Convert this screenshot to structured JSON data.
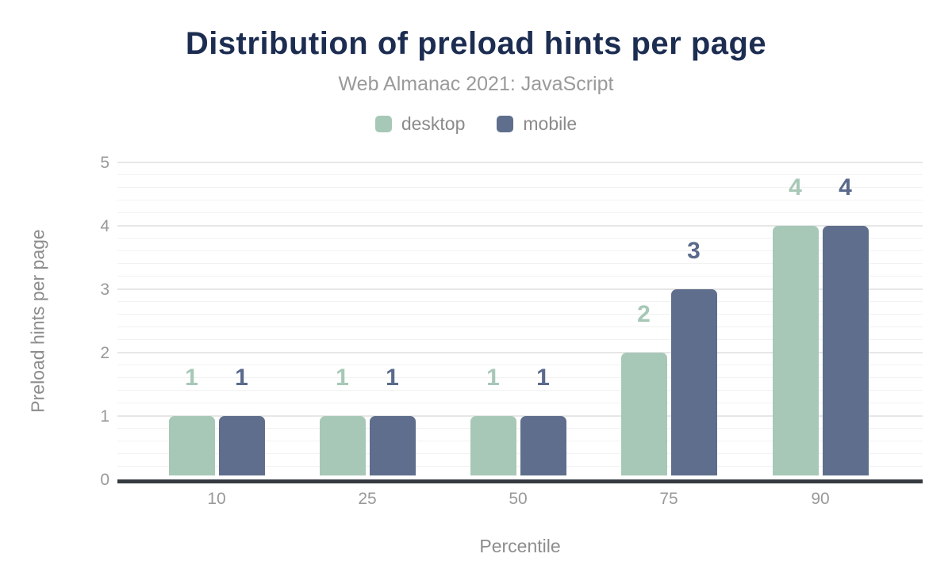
{
  "chart_data": {
    "type": "bar",
    "title": "Distribution of preload hints per page",
    "subtitle": "Web Almanac 2021: JavaScript",
    "xlabel": "Percentile",
    "ylabel": "Preload hints per page",
    "categories": [
      "10",
      "25",
      "50",
      "75",
      "90"
    ],
    "series": [
      {
        "name": "desktop",
        "color": "#a7c8b7",
        "label_color": "#a7c8b7",
        "values": [
          1,
          1,
          1,
          2,
          4
        ]
      },
      {
        "name": "mobile",
        "color": "#5f6e8c",
        "label_color": "#5a6a8c",
        "values": [
          1,
          1,
          1,
          3,
          4
        ]
      }
    ],
    "ylim": [
      0,
      5
    ],
    "yticks": [
      0,
      1,
      2,
      3,
      4,
      5
    ],
    "minor_tick_step": 0.2,
    "grid": "on",
    "legend_position": "top"
  },
  "style_colors": {
    "title": "#1c2d51",
    "subtitle": "#9a9a9a",
    "legend_text": "#8b8b8b",
    "tick_text": "#999999",
    "axis_title_text": "#8d8d8d",
    "major_grid": "#e7e7e7",
    "minor_grid": "#f2f2f2",
    "axis_line": "#343a40",
    "background": "#ffffff"
  }
}
